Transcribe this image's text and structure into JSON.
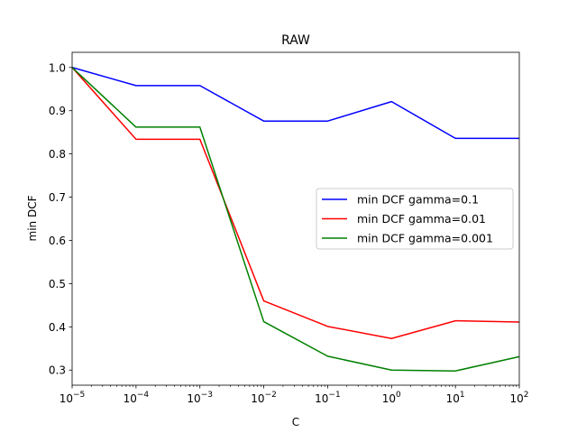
{
  "chart_data": {
    "type": "line",
    "title": "RAW",
    "xlabel": "C",
    "ylabel": "min DCF",
    "xscale": "log",
    "xlim": [
      1e-05,
      100
    ],
    "ylim": [
      0.265,
      1.035
    ],
    "x": [
      1e-05,
      0.0001,
      0.001,
      0.01,
      0.1,
      1,
      10,
      100
    ],
    "x_tick_labels": [
      {
        "base": "10",
        "exp": "−5"
      },
      {
        "base": "10",
        "exp": "−4"
      },
      {
        "base": "10",
        "exp": "−3"
      },
      {
        "base": "10",
        "exp": "−2"
      },
      {
        "base": "10",
        "exp": "−1"
      },
      {
        "base": "10",
        "exp": "0"
      },
      {
        "base": "10",
        "exp": "1"
      },
      {
        "base": "10",
        "exp": "2"
      }
    ],
    "y_ticks": [
      0.3,
      0.4,
      0.5,
      0.6,
      0.7,
      0.8,
      0.9,
      1.0
    ],
    "y_tick_labels": [
      "0.3",
      "0.4",
      "0.5",
      "0.6",
      "0.7",
      "0.8",
      "0.9",
      "1.0"
    ],
    "grid": false,
    "legend_position": "center-right",
    "series": [
      {
        "name": "min DCF gamma=0.1",
        "color": "#0000ff",
        "values": [
          1.0,
          0.958,
          0.958,
          0.876,
          0.876,
          0.921,
          0.836,
          0.836
        ]
      },
      {
        "name": "min DCF gamma=0.01",
        "color": "#ff0000",
        "values": [
          1.0,
          0.834,
          0.834,
          0.46,
          0.401,
          0.373,
          0.414,
          0.411
        ]
      },
      {
        "name": "min DCF gamma=0.001",
        "color": "#008000",
        "values": [
          1.0,
          0.862,
          0.862,
          0.412,
          0.332,
          0.3,
          0.298,
          0.331
        ]
      }
    ]
  }
}
